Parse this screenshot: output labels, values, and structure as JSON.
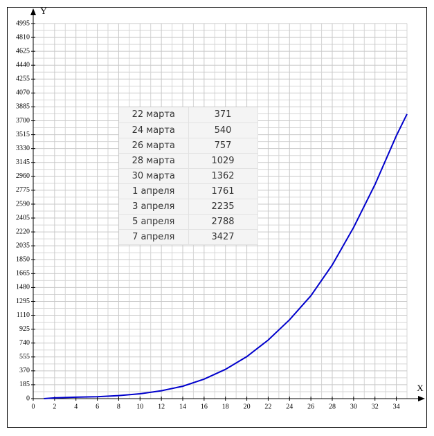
{
  "chart_data": {
    "type": "line",
    "x": [
      1,
      2,
      4,
      6,
      8,
      10,
      12,
      14,
      16,
      18,
      20,
      22,
      24,
      26,
      28,
      30,
      32,
      34,
      35
    ],
    "values": [
      0,
      10,
      20,
      25,
      40,
      65,
      105,
      165,
      260,
      390,
      560,
      780,
      1050,
      1370,
      1780,
      2280,
      2850,
      3500,
      3790
    ],
    "color": "#0000cc",
    "xlabel": "X",
    "ylabel": "Y",
    "xlim": [
      0,
      35
    ],
    "ylim": [
      0,
      4995
    ],
    "xticks": [
      0,
      2,
      4,
      6,
      8,
      10,
      12,
      14,
      16,
      18,
      20,
      22,
      24,
      26,
      28,
      30,
      32,
      34
    ],
    "yticks": [
      0,
      185,
      370,
      555,
      740,
      925,
      1110,
      1295,
      1480,
      1665,
      1850,
      2035,
      2220,
      2405,
      2590,
      2775,
      2960,
      3145,
      3330,
      3515,
      3700,
      3885,
      4070,
      4255,
      4440,
      4625,
      4810,
      4995
    ],
    "grid": true,
    "minor_grid": true
  },
  "table": {
    "rows": [
      [
        "22 марта",
        "371"
      ],
      [
        "24 марта",
        "540"
      ],
      [
        "26 марта",
        "757"
      ],
      [
        "28 марта",
        "1029"
      ],
      [
        "30 марта",
        "1362"
      ],
      [
        "1 апреля",
        "1761"
      ],
      [
        "3 апреля",
        "2235"
      ],
      [
        "5 апреля",
        "2788"
      ],
      [
        "7 апреля",
        "3427"
      ]
    ]
  }
}
